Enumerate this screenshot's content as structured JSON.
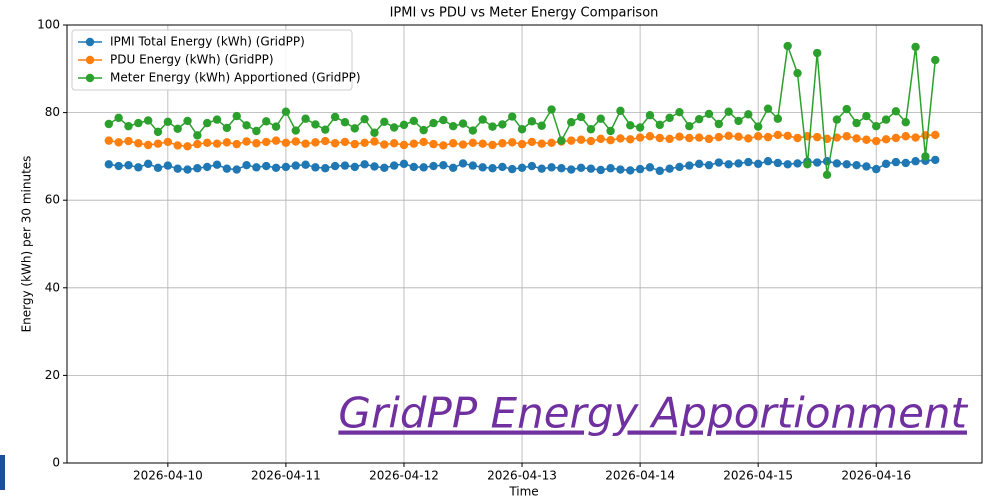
{
  "chart_data": {
    "type": "line",
    "title": "IPMI vs PDU vs Meter Energy Comparison",
    "xlabel": "Time",
    "ylabel": "Energy (kWh) per 30 minutes",
    "annotation": "GridPP Energy Apportionment",
    "legend": "upper left",
    "grid": true,
    "ylim": [
      0,
      100
    ],
    "yticks": [
      0,
      20,
      40,
      60,
      80,
      100
    ],
    "xlim": [
      "2026-04-09 03:30",
      "2026-04-16 21:30"
    ],
    "xticks": [
      "2026-04-10",
      "2026-04-11",
      "2026-04-12",
      "2026-04-13",
      "2026-04-14",
      "2026-04-15",
      "2026-04-16"
    ],
    "x": [
      "2026-04-09 12:00",
      "2026-04-09 14:00",
      "2026-04-09 16:00",
      "2026-04-09 18:00",
      "2026-04-09 20:00",
      "2026-04-09 22:00",
      "2026-04-10 00:00",
      "2026-04-10 02:00",
      "2026-04-10 04:00",
      "2026-04-10 06:00",
      "2026-04-10 08:00",
      "2026-04-10 10:00",
      "2026-04-10 12:00",
      "2026-04-10 14:00",
      "2026-04-10 16:00",
      "2026-04-10 18:00",
      "2026-04-10 20:00",
      "2026-04-10 22:00",
      "2026-04-11 00:00",
      "2026-04-11 02:00",
      "2026-04-11 04:00",
      "2026-04-11 06:00",
      "2026-04-11 08:00",
      "2026-04-11 10:00",
      "2026-04-11 12:00",
      "2026-04-11 14:00",
      "2026-04-11 16:00",
      "2026-04-11 18:00",
      "2026-04-11 20:00",
      "2026-04-11 22:00",
      "2026-04-12 00:00",
      "2026-04-12 02:00",
      "2026-04-12 04:00",
      "2026-04-12 06:00",
      "2026-04-12 08:00",
      "2026-04-12 10:00",
      "2026-04-12 12:00",
      "2026-04-12 14:00",
      "2026-04-12 16:00",
      "2026-04-12 18:00",
      "2026-04-12 20:00",
      "2026-04-12 22:00",
      "2026-04-13 00:00",
      "2026-04-13 02:00",
      "2026-04-13 04:00",
      "2026-04-13 06:00",
      "2026-04-13 08:00",
      "2026-04-13 10:00",
      "2026-04-13 12:00",
      "2026-04-13 14:00",
      "2026-04-13 16:00",
      "2026-04-13 18:00",
      "2026-04-13 20:00",
      "2026-04-13 22:00",
      "2026-04-14 00:00",
      "2026-04-14 02:00",
      "2026-04-14 04:00",
      "2026-04-14 06:00",
      "2026-04-14 08:00",
      "2026-04-14 10:00",
      "2026-04-14 12:00",
      "2026-04-14 14:00",
      "2026-04-14 16:00",
      "2026-04-14 18:00",
      "2026-04-14 20:00",
      "2026-04-14 22:00",
      "2026-04-15 00:00",
      "2026-04-15 02:00",
      "2026-04-15 04:00",
      "2026-04-15 06:00",
      "2026-04-15 08:00",
      "2026-04-15 10:00",
      "2026-04-15 12:00",
      "2026-04-15 14:00",
      "2026-04-15 16:00",
      "2026-04-15 18:00",
      "2026-04-15 20:00",
      "2026-04-15 22:00",
      "2026-04-16 00:00",
      "2026-04-16 02:00",
      "2026-04-16 04:00",
      "2026-04-16 06:00",
      "2026-04-16 08:00",
      "2026-04-16 10:00",
      "2026-04-16 12:00"
    ],
    "series": [
      {
        "name": "IPMI Total Energy (kWh) (GridPP)",
        "color": "#1f77b4",
        "values": [
          68.2,
          67.8,
          68.0,
          67.5,
          68.3,
          67.4,
          67.9,
          67.2,
          67.0,
          67.3,
          67.6,
          68.1,
          67.2,
          67.0,
          68.0,
          67.5,
          67.8,
          67.4,
          67.6,
          67.9,
          68.1,
          67.5,
          67.3,
          67.8,
          67.9,
          67.6,
          68.2,
          67.7,
          67.4,
          67.9,
          68.3,
          67.6,
          67.5,
          67.8,
          68.0,
          67.4,
          68.4,
          67.9,
          67.5,
          67.3,
          67.6,
          67.1,
          67.4,
          67.8,
          67.2,
          67.5,
          67.3,
          67.0,
          67.4,
          67.2,
          66.9,
          67.3,
          67.0,
          66.8,
          67.1,
          67.5,
          66.7,
          67.2,
          67.6,
          67.9,
          68.3,
          68.0,
          68.6,
          68.2,
          68.4,
          68.7,
          68.3,
          68.9,
          68.5,
          68.2,
          68.4,
          68.8,
          68.6,
          68.9,
          68.4,
          68.2,
          68.0,
          67.7,
          67.1,
          68.3,
          68.7,
          68.5,
          68.9,
          69.0,
          69.2
        ]
      },
      {
        "name": "PDU Energy (kWh) (GridPP)",
        "color": "#ff7f0e",
        "values": [
          73.6,
          73.2,
          73.5,
          73.0,
          72.6,
          72.9,
          73.3,
          72.5,
          72.3,
          72.8,
          73.1,
          72.9,
          73.2,
          72.8,
          73.4,
          73.0,
          73.3,
          73.6,
          73.1,
          73.4,
          72.9,
          73.2,
          73.5,
          73.0,
          73.3,
          72.8,
          73.1,
          73.4,
          72.7,
          73.0,
          72.6,
          72.9,
          73.3,
          72.8,
          72.5,
          73.0,
          72.7,
          73.1,
          72.9,
          72.6,
          73.0,
          73.2,
          72.8,
          73.3,
          72.9,
          73.1,
          73.4,
          73.6,
          73.8,
          73.5,
          74.0,
          73.7,
          74.1,
          73.9,
          74.3,
          74.6,
          74.2,
          74.0,
          74.5,
          74.2,
          74.3,
          74.0,
          74.4,
          74.7,
          74.5,
          74.1,
          74.6,
          74.4,
          74.9,
          74.7,
          74.2,
          74.6,
          74.4,
          74.0,
          74.3,
          74.6,
          74.1,
          73.8,
          73.5,
          73.9,
          74.2,
          74.6,
          74.3,
          74.8,
          74.9
        ]
      },
      {
        "name": "Meter Energy (kWh) Apportioned (GridPP)",
        "color": "#2ca02c",
        "values": [
          77.4,
          78.8,
          76.9,
          77.6,
          78.2,
          75.6,
          77.9,
          76.3,
          78.1,
          74.8,
          77.6,
          78.4,
          76.5,
          79.2,
          77.1,
          75.8,
          78.0,
          76.8,
          80.2,
          75.9,
          78.6,
          77.3,
          76.1,
          79.0,
          77.8,
          76.4,
          78.5,
          75.4,
          77.9,
          76.6,
          77.2,
          78.1,
          76.0,
          77.6,
          78.3,
          76.9,
          77.5,
          75.9,
          78.4,
          76.8,
          77.3,
          79.1,
          76.2,
          78.0,
          77.0,
          80.7,
          73.6,
          77.8,
          79.0,
          76.2,
          78.6,
          75.8,
          80.4,
          77.1,
          76.6,
          79.4,
          77.2,
          78.8,
          80.1,
          76.9,
          78.5,
          79.7,
          77.4,
          80.2,
          78.1,
          79.6,
          76.8,
          80.9,
          78.6,
          95.2,
          89.0,
          68.2,
          93.6,
          65.8,
          78.4,
          80.8,
          77.6,
          79.2,
          76.9,
          78.4,
          80.3,
          77.8,
          95.0,
          70.0,
          92.0
        ]
      }
    ]
  }
}
